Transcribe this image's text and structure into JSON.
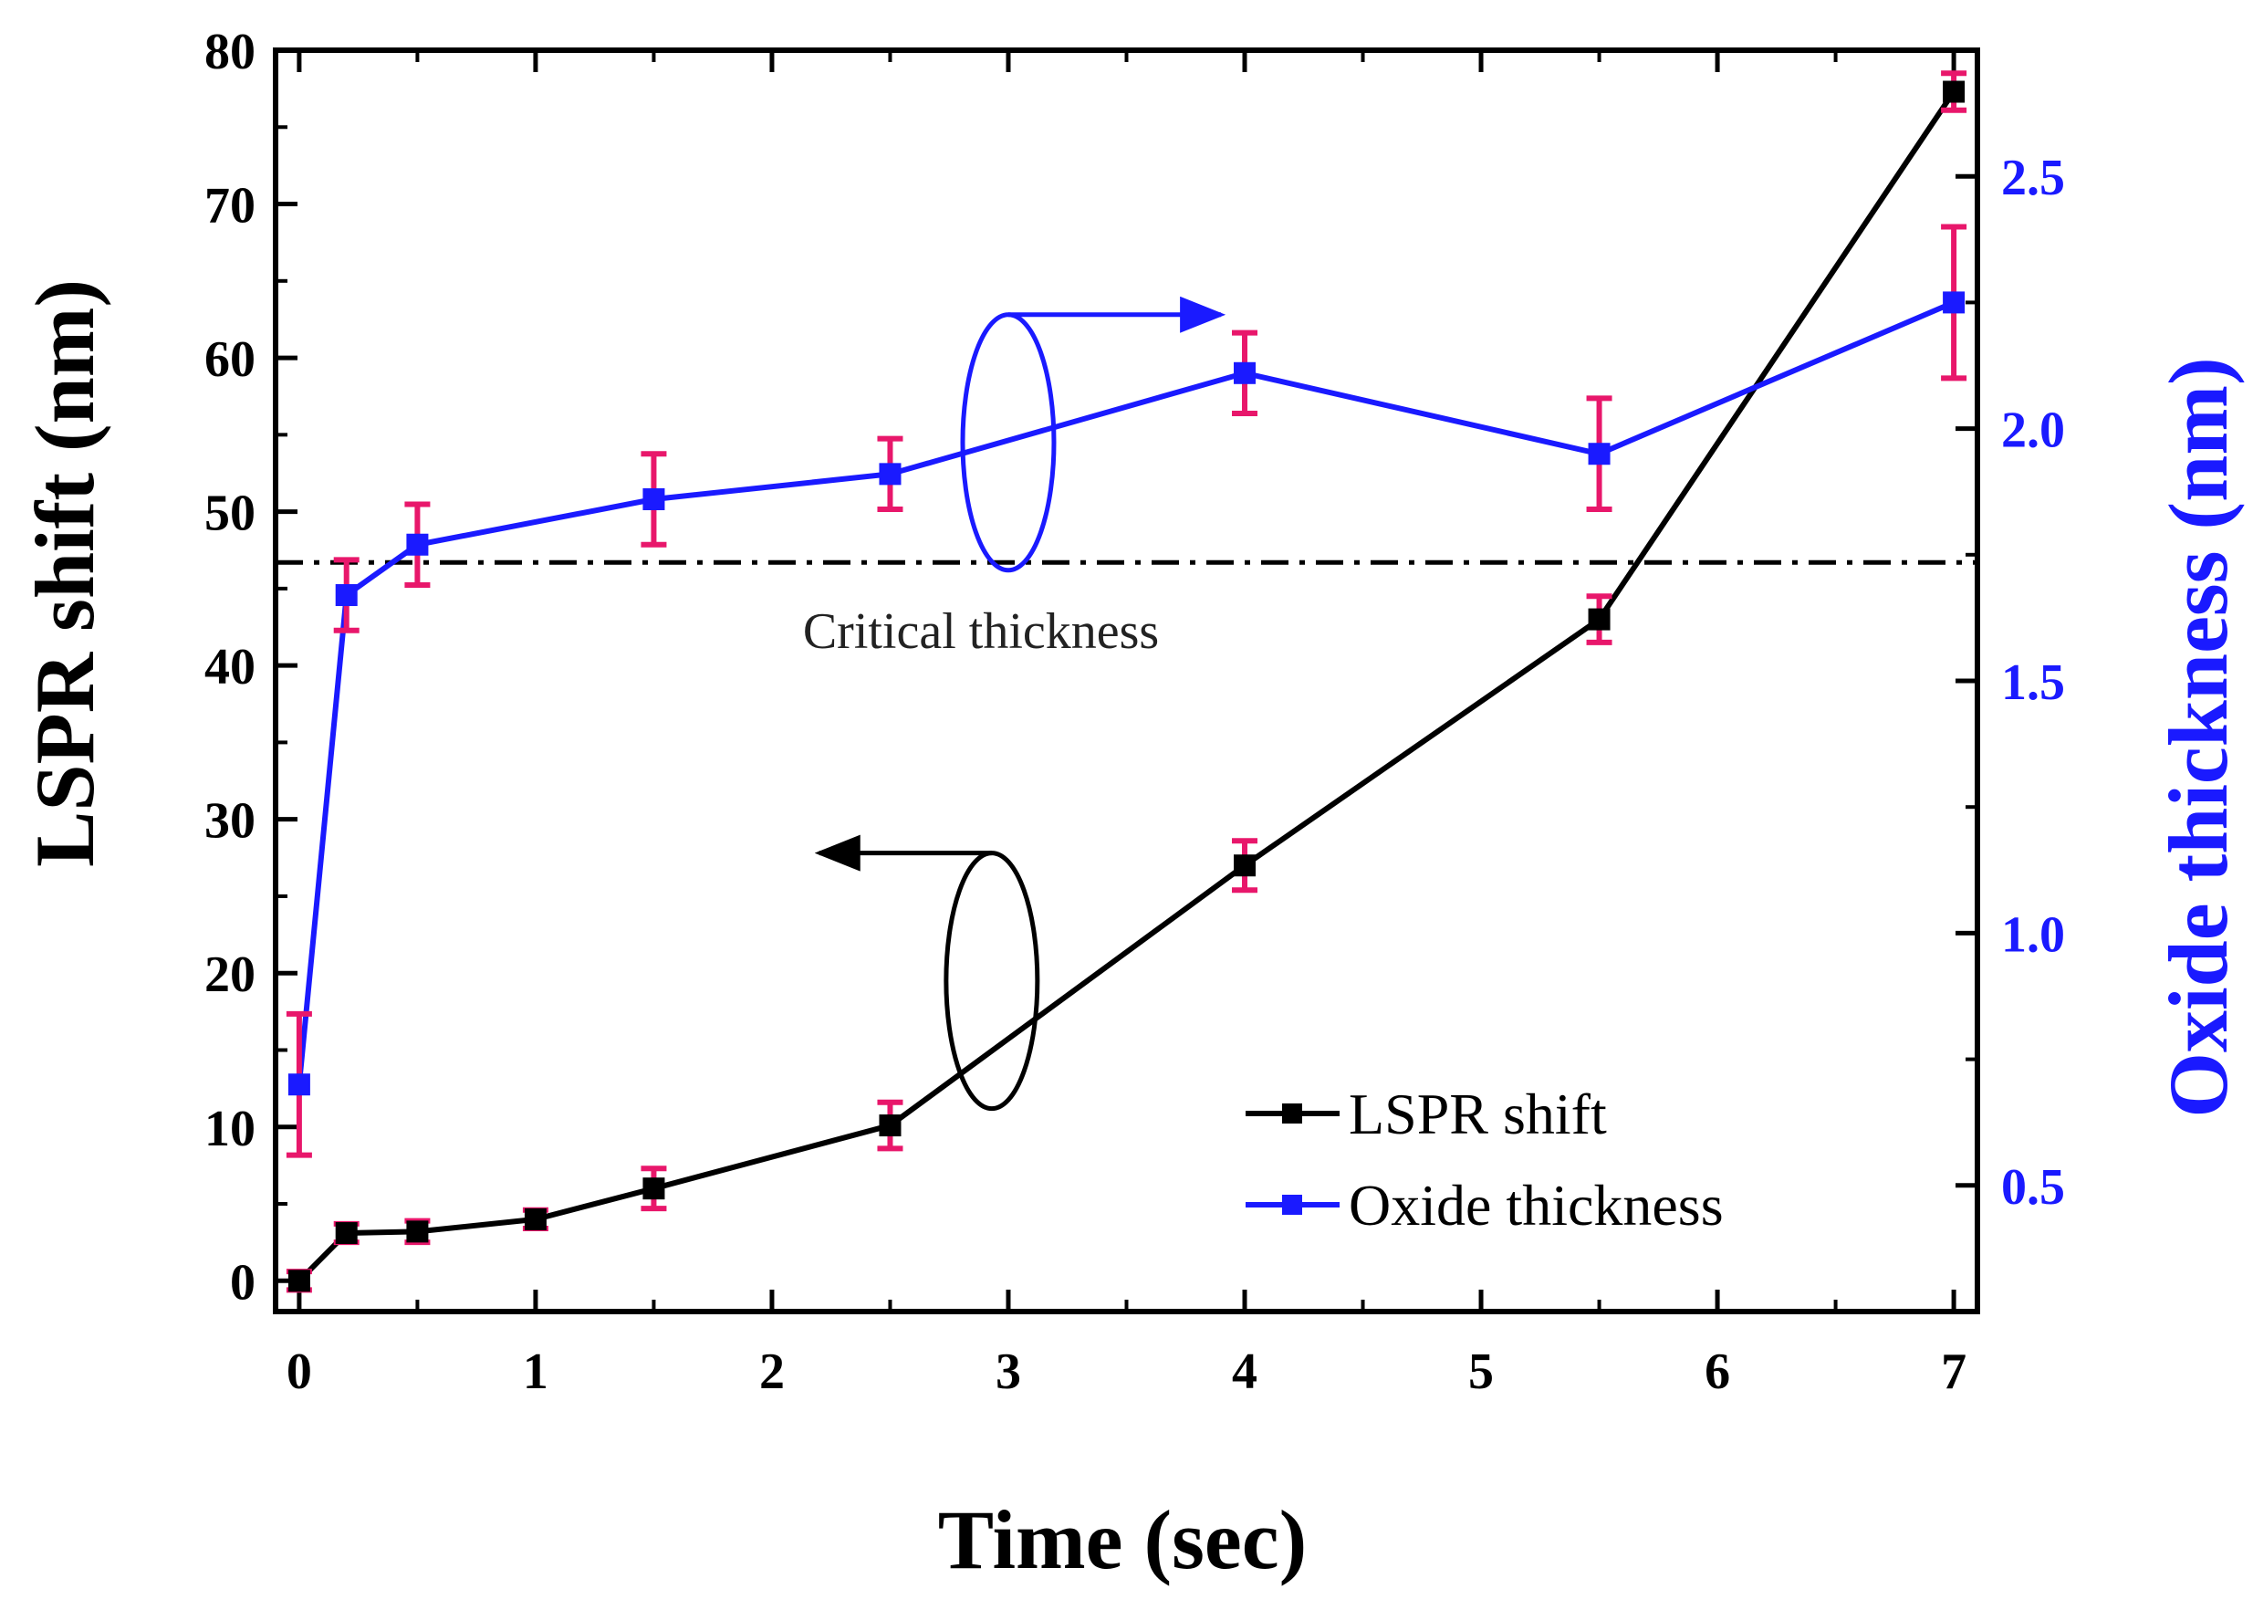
{
  "chart_data": {
    "type": "line",
    "title": "",
    "xlabel": "Time (sec)",
    "ylabel_left": "LSPR shift (nm)",
    "ylabel_right": "Oxide thickness (nm)",
    "xlim": [
      -0.1,
      7.1
    ],
    "ylim_left": [
      -2,
      80
    ],
    "ylim_right": [
      0.25,
      2.75
    ],
    "x_ticks": [
      0,
      1,
      2,
      3,
      4,
      5,
      6,
      7
    ],
    "x_tick_labels": [
      "0",
      "1",
      "2",
      "3",
      "4",
      "5",
      "6",
      "7"
    ],
    "y_left_ticks": [
      0,
      10,
      20,
      30,
      40,
      50,
      60,
      70,
      80
    ],
    "y_left_tick_labels": [
      "0",
      "10",
      "20",
      "30",
      "40",
      "50",
      "60",
      "70",
      "80"
    ],
    "y_right_ticks": [
      0.5,
      1.0,
      1.5,
      2.0,
      2.5
    ],
    "y_right_tick_labels": [
      "0.5",
      "1.0",
      "1.5",
      "2.0",
      "2.5"
    ],
    "grid": false,
    "legend_position": "bottom-right",
    "colors": {
      "lspr": "#000000",
      "oxide": "#1a1aff",
      "error_bar": "#e8176b",
      "right_axis_text": "#1a1aff"
    },
    "series": [
      {
        "name": "LSPR shift",
        "axis": "left",
        "color": "#000000",
        "x": [
          0,
          0.2,
          0.5,
          1,
          1.5,
          2.5,
          4,
          5.5,
          7
        ],
        "values": [
          0,
          3.1,
          3.2,
          4.0,
          6.0,
          10.1,
          27.0,
          43.0,
          77.3
        ],
        "errors": [
          0.6,
          0.6,
          0.7,
          0.6,
          1.3,
          1.5,
          1.6,
          1.5,
          1.2
        ]
      },
      {
        "name": "Oxide thickness",
        "axis": "right",
        "color": "#1a1aff",
        "x": [
          0,
          0.2,
          0.5,
          1.5,
          2.5,
          4,
          5.5,
          7
        ],
        "values": [
          0.7,
          1.67,
          1.77,
          1.86,
          1.91,
          2.11,
          1.95,
          2.25
        ],
        "errors": [
          0.14,
          0.07,
          0.08,
          0.09,
          0.07,
          0.08,
          0.11,
          0.15
        ]
      }
    ],
    "reference_line": {
      "label": "Critical thickness",
      "axis": "left",
      "value": 46.7,
      "style": "dash-dot"
    },
    "annotations": [
      {
        "kind": "ellipse-arrow",
        "target_axis": "right",
        "ellipse_center": [
          3.0,
          54.5
        ],
        "arrow_to": [
          3.9,
          64.6
        ]
      },
      {
        "kind": "ellipse-arrow",
        "target_axis": "left",
        "ellipse_center": [
          2.93,
          19.5
        ],
        "arrow_to": [
          2.2,
          25.7
        ]
      }
    ]
  }
}
